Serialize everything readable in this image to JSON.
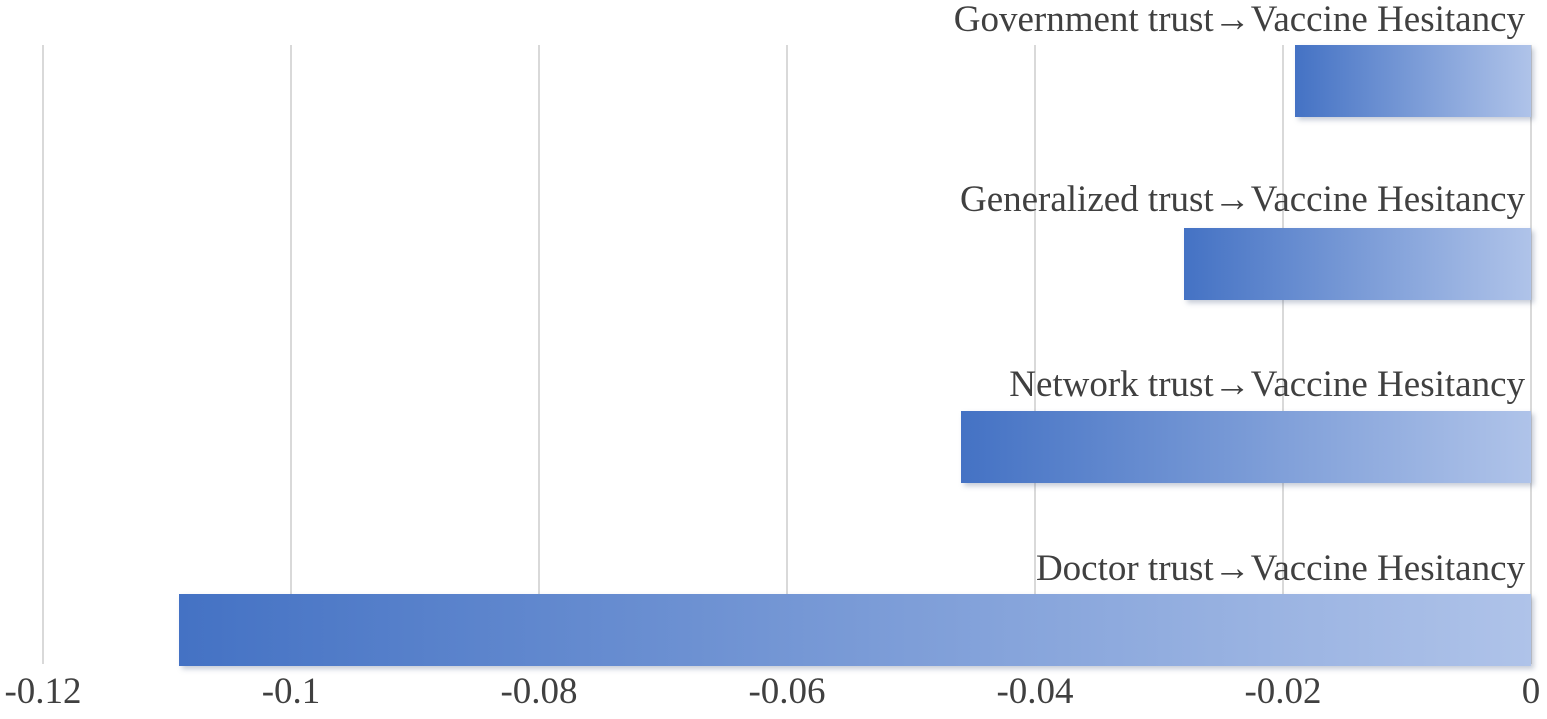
{
  "chart_data": {
    "type": "bar",
    "orientation": "horizontal",
    "title": "",
    "xlabel": "",
    "ylabel": "",
    "categories": [
      "Government trust→Vaccine Hesitancy",
      "Generalized trust→Vaccine Hesitancy",
      "Network trust→Vaccine Hesitancy",
      "Doctor trust→Vaccine Hesitancy"
    ],
    "values": [
      -0.019,
      -0.028,
      -0.046,
      -0.109
    ],
    "x_ticks": [
      "-0.12",
      "-0.1",
      "-0.08",
      "-0.06",
      "-0.04",
      "-0.02",
      "0"
    ],
    "x_tick_values": [
      -0.12,
      -0.1,
      -0.08,
      -0.06,
      -0.04,
      -0.02,
      0
    ],
    "xlim": [
      -0.12,
      0
    ],
    "grid": true,
    "legend_position": "none",
    "colors": {
      "bar_gradient_dark": "#4472C4",
      "bar_gradient_light": "#AFC3E9",
      "gridline": "#D9D9D9",
      "text": "#404040",
      "background": "#FFFFFF"
    }
  }
}
